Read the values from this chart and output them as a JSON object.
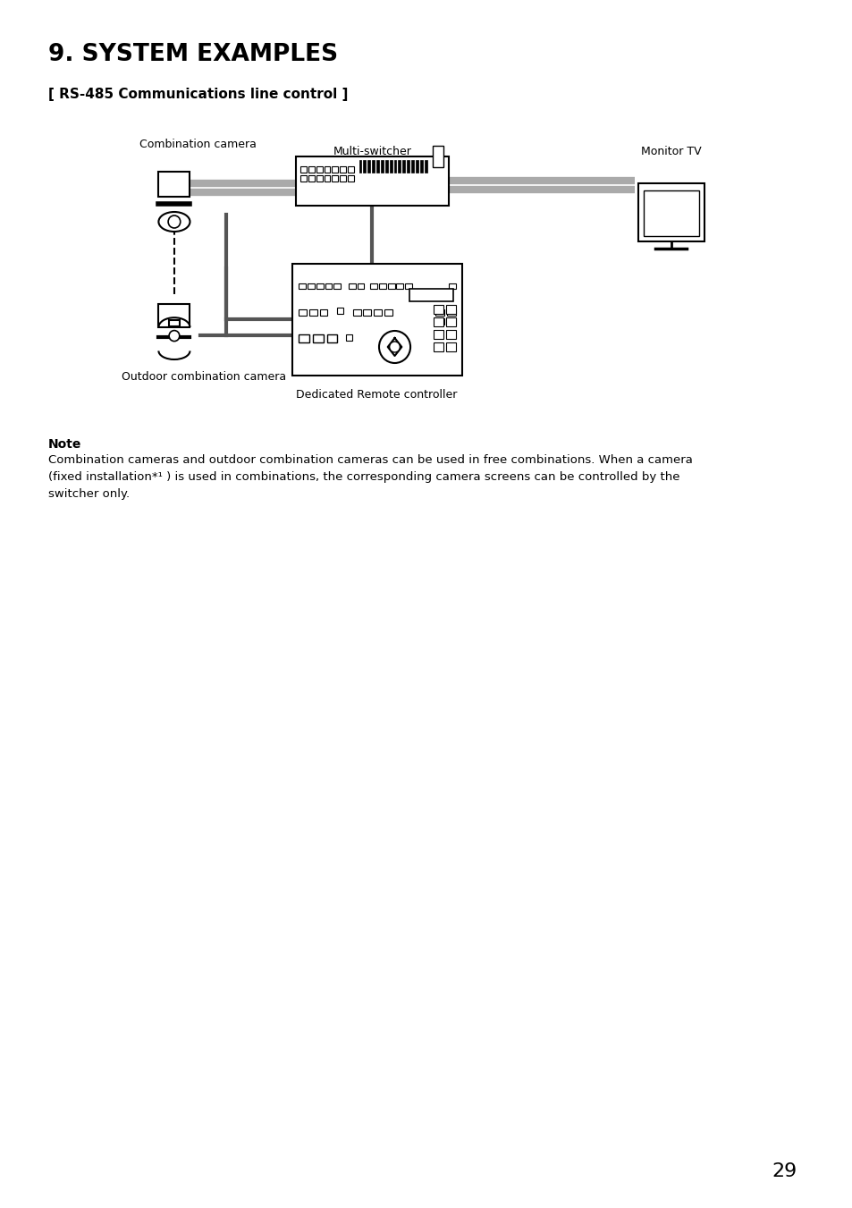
{
  "title": "9. SYSTEM EXAMPLES",
  "subtitle": "[ RS-485 Communications line control ]",
  "label_combination_camera": "Combination camera",
  "label_outdoor_camera": "Outdoor combination camera",
  "label_multi_switcher": "Multi-switcher",
  "label_monitor_tv": "Monitor TV",
  "label_remote": "Dedicated Remote controller",
  "note_title": "Note",
  "note_body": "Combination cameras and outdoor combination cameras can be used in free combinations. When a camera\n(fixed installation*¹ ) is used in combinations, the corresponding camera screens can be controlled by the\nswitcher only.",
  "page_number": "29",
  "bg_color": "#ffffff",
  "fg_color": "#000000",
  "line_color": "#888888",
  "dark_line": "#222222"
}
